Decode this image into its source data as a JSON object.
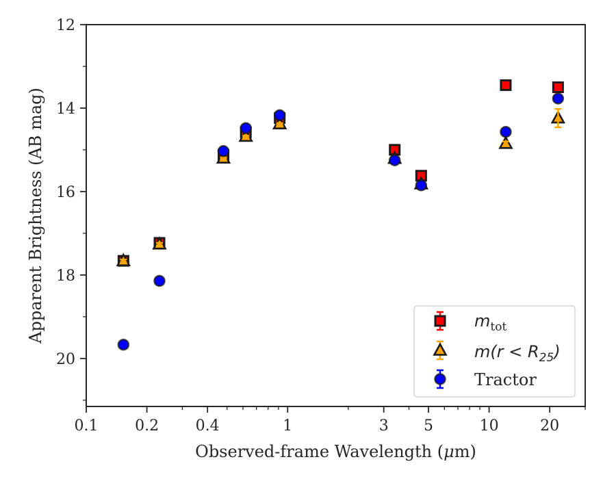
{
  "chart_data": {
    "type": "scatter",
    "xscale": "log",
    "xlim": [
      0.1,
      30
    ],
    "ylim": [
      21.15,
      12.0
    ],
    "xlabel_prefix": "Observed-frame Wavelength (",
    "xlabel_mu": "μ",
    "xlabel_suffix": "m)",
    "ylabel": "Apparent Brightness (AB mag)",
    "x_ticks": [
      {
        "value": 0.1,
        "label": "0.1"
      },
      {
        "value": 0.2,
        "label": "0.2"
      },
      {
        "value": 0.4,
        "label": "0.4"
      },
      {
        "value": 1,
        "label": "1"
      },
      {
        "value": 3,
        "label": "3"
      },
      {
        "value": 5,
        "label": "5"
      },
      {
        "value": 10,
        "label": "10"
      },
      {
        "value": 20,
        "label": "20"
      }
    ],
    "x_minor_ticks": [
      0.3,
      0.5,
      0.6,
      0.7,
      0.8,
      0.9,
      2,
      4,
      6,
      7,
      8,
      9,
      30
    ],
    "y_ticks": [
      {
        "value": 12,
        "label": "12"
      },
      {
        "value": 14,
        "label": "14"
      },
      {
        "value": 16,
        "label": "16"
      },
      {
        "value": 18,
        "label": "18"
      },
      {
        "value": 20,
        "label": "20"
      }
    ],
    "y_minor_ticks": [
      13,
      15,
      17,
      19,
      21
    ],
    "series": [
      {
        "name": "m_tot",
        "marker": "square",
        "color": "#ff0000",
        "ecolor": "#ff0000",
        "x": [
          0.153,
          0.231,
          0.48,
          0.62,
          0.913,
          3.4,
          4.6,
          12.1,
          22.0
        ],
        "y": [
          17.66,
          17.23,
          15.12,
          14.58,
          14.24,
          15.0,
          15.62,
          13.45,
          13.5
        ],
        "yerr": [
          0.03,
          0.03,
          0.02,
          0.02,
          0.02,
          0.02,
          0.02,
          0.02,
          0.03
        ]
      },
      {
        "name": "m(r<R25)",
        "marker": "triangle",
        "color": "#ffa500",
        "ecolor": "#ffa500",
        "x": [
          0.153,
          0.231,
          0.48,
          0.62,
          0.913,
          3.4,
          4.6,
          12.1,
          22.0
        ],
        "y": [
          17.66,
          17.26,
          15.2,
          14.68,
          14.38,
          15.21,
          15.82,
          14.85,
          14.24
        ],
        "yerr": [
          0.03,
          0.03,
          0.02,
          0.02,
          0.02,
          0.02,
          0.02,
          0.05,
          0.22
        ]
      },
      {
        "name": "Tractor",
        "marker": "circle",
        "color": "#0000ff",
        "ecolor": "#0000ff",
        "x": [
          0.153,
          0.231,
          0.48,
          0.62,
          0.913,
          3.4,
          4.6,
          12.1,
          22.0
        ],
        "y": [
          19.67,
          18.14,
          15.03,
          14.48,
          14.17,
          15.25,
          15.85,
          14.57,
          13.77
        ],
        "yerr": [
          0.05,
          0.05,
          0.02,
          0.02,
          0.02,
          0.02,
          0.02,
          0.04,
          0.06
        ]
      }
    ],
    "legend": {
      "position": "lower-right",
      "entries": [
        {
          "base": "m",
          "sub": "tot",
          "label_plain": "m_tot"
        },
        {
          "base": "m",
          "mid": "(r < R",
          "sub": "25",
          "end": ")",
          "label_plain": "m(r<R25)"
        },
        {
          "text": "Tractor"
        }
      ]
    },
    "colors": {
      "axes": "#262626",
      "marker_edge": "#1a1a1a"
    }
  }
}
